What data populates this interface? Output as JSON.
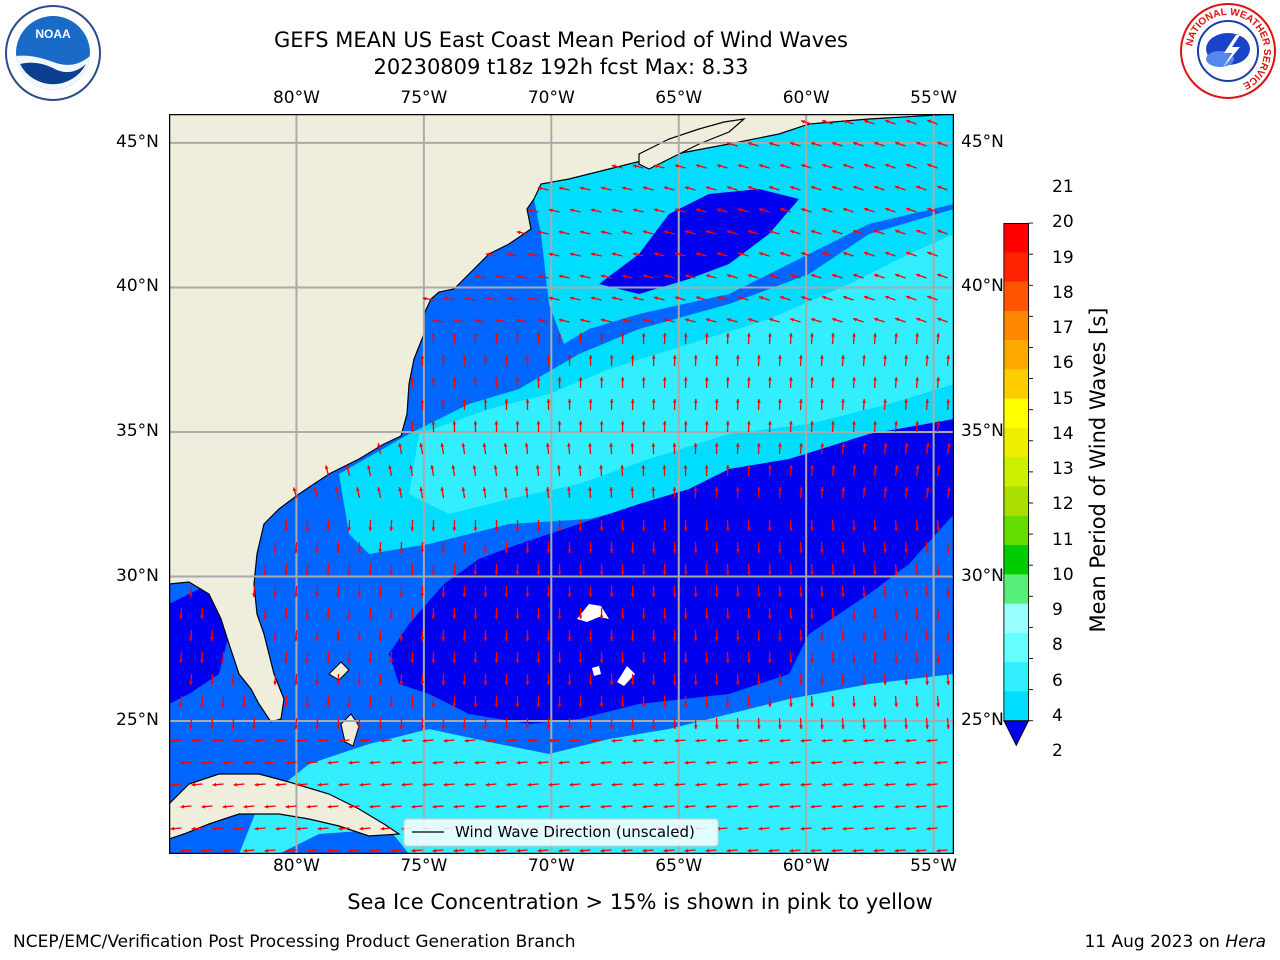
{
  "title": {
    "line1": "GEFS MEAN US East Coast Mean Period of Wind Waves",
    "line2": "20230809 t18z 192h fcst   Max: 8.33"
  },
  "logos": {
    "left": "NOAA",
    "right": "NATIONAL WEATHER SERVICE"
  },
  "map": {
    "projection": "plate-carree",
    "lon_range": [
      -85,
      -54.2
    ],
    "lat_range": [
      20.4,
      46
    ],
    "lon_ticks": [
      "80°W",
      "75°W",
      "70°W",
      "65°W",
      "60°W",
      "55°W"
    ],
    "lat_ticks": [
      "45°N",
      "40°N",
      "35°N",
      "30°N",
      "25°N"
    ],
    "legend": "Wind Wave Direction (unscaled)",
    "colors": {
      "land": "#efeedd",
      "gridline": "#aaaaaa",
      "arrow": "#ff0000"
    }
  },
  "colorbar": {
    "label": "Mean Period of Wind Waves [s]",
    "ticks": [
      "2",
      "4",
      "6",
      "8",
      "9",
      "10",
      "11",
      "12",
      "13",
      "14",
      "15",
      "16",
      "17",
      "18",
      "19",
      "20",
      "21"
    ],
    "colors": [
      "#0066ff",
      "#00ddff",
      "#33eeff",
      "#66ffff",
      "#99ffff",
      "#55ee77",
      "#00cc00",
      "#66dd00",
      "#aadd00",
      "#ccee00",
      "#eeee00",
      "#ffff00",
      "#ffcc00",
      "#ffaa00",
      "#ff8800",
      "#ff5500",
      "#ff2200",
      "#ff0000"
    ],
    "under_color": "#0000ee"
  },
  "caption": "Sea Ice Concentration > 15% is shown in pink to yellow",
  "footer": {
    "left": "NCEP/EMC/Verification Post Processing Product Generation Branch",
    "right_date": "11 Aug 2023 on ",
    "right_host": "Hera"
  }
}
